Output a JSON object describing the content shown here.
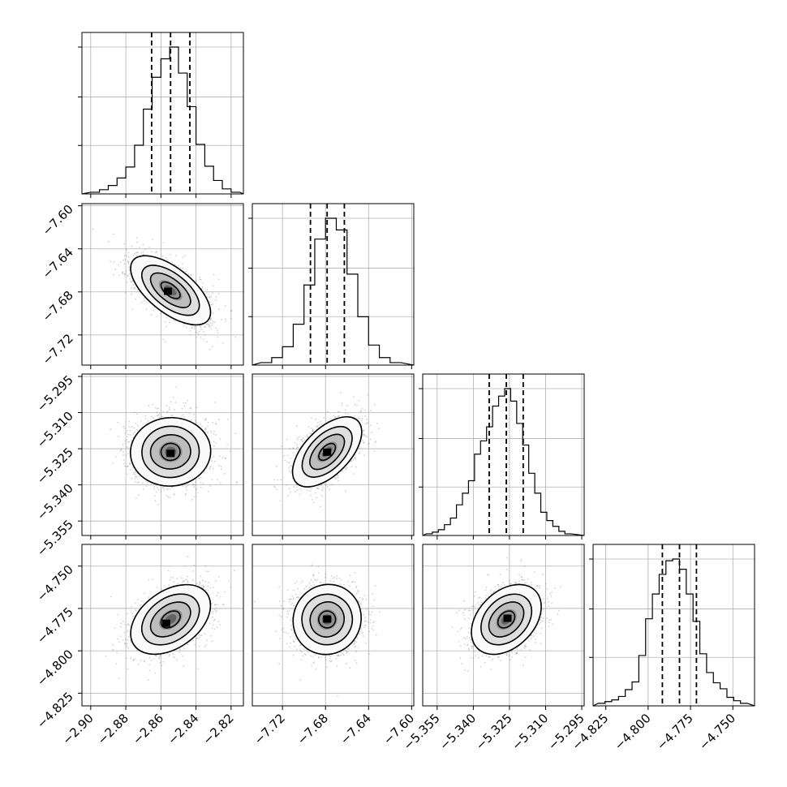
{
  "chart_data": {
    "type": "corner",
    "title": "",
    "parameters": [
      {
        "name": "",
        "range": [
          -2.905,
          -2.813
        ],
        "ticks": [
          -2.9,
          -2.88,
          -2.86,
          -2.84,
          -2.82
        ],
        "tick_labels": [
          "−2.90",
          "−2.88",
          "−2.86",
          "−2.84",
          "−2.82"
        ],
        "quantiles": [
          -2.8653,
          -2.8545,
          -2.8435
        ],
        "hist_bins": [
          -2.9,
          -2.895,
          -2.89,
          -2.885,
          -2.88,
          -2.875,
          -2.87,
          -2.865,
          -2.86,
          -2.855,
          -2.85,
          -2.845,
          -2.84,
          -2.835,
          -2.83,
          -2.825,
          -2.82,
          -2.815
        ],
        "hist_counts": [
          2,
          5,
          10,
          19,
          32,
          58,
          101,
          139,
          161,
          175,
          144,
          104,
          59,
          33,
          16,
          6,
          2
        ]
      },
      {
        "name": "",
        "range": [
          -7.748,
          -7.598
        ],
        "ticks": [
          -7.72,
          -7.68,
          -7.64,
          -7.6
        ],
        "tick_labels": [
          "−7.72",
          "−7.68",
          "−7.64",
          "−7.60"
        ],
        "quantiles": [
          -7.694,
          -7.6785,
          -7.6625
        ],
        "hist_bins": [
          -7.74,
          -7.73,
          -7.72,
          -7.71,
          -7.7,
          -7.69,
          -7.68,
          -7.67,
          -7.66,
          -7.65,
          -7.64,
          -7.63,
          -7.62,
          -7.61
        ],
        "hist_counts": [
          3,
          9,
          22,
          49,
          96,
          151,
          176,
          162,
          109,
          58,
          24,
          9,
          3
        ]
      },
      {
        "name": "",
        "range": [
          -5.361,
          -5.294
        ],
        "ticks": [
          -5.355,
          -5.34,
          -5.325,
          -5.31,
          -5.295
        ],
        "tick_labels": [
          "−5.355",
          "−5.340",
          "−5.325",
          "−5.310",
          "−5.295"
        ],
        "quantiles": [
          -5.3334,
          -5.3263,
          -5.3193
        ],
        "hist_bins": [
          -5.3595,
          -5.357,
          -5.3545,
          -5.352,
          -5.3495,
          -5.347,
          -5.3445,
          -5.342,
          -5.3395,
          -5.337,
          -5.3345,
          -5.332,
          -5.3295,
          -5.327,
          -5.3245,
          -5.322,
          -5.3195,
          -5.317,
          -5.3145,
          -5.312,
          -5.3095,
          -5.307,
          -5.3045,
          -5.302,
          -5.2995
        ],
        "hist_counts": [
          2,
          4,
          7,
          13,
          21,
          37,
          51,
          66,
          98,
          114,
          131,
          156,
          168,
          177,
          162,
          135,
          109,
          75,
          51,
          28,
          18,
          11,
          5,
          2
        ]
      },
      {
        "name": "",
        "range": [
          -4.8325,
          -4.7372
        ],
        "ticks": [
          -4.825,
          -4.8,
          -4.775,
          -4.75
        ],
        "tick_labels": [
          "−4.825",
          "−4.800",
          "−4.775",
          "−4.750"
        ],
        "quantiles": [
          -4.7916,
          -4.7815,
          -4.7715
        ],
        "hist_bins": [
          -4.8295,
          -4.8255,
          -4.8215,
          -4.8175,
          -4.8135,
          -4.8095,
          -4.8055,
          -4.8015,
          -4.7975,
          -4.7935,
          -4.7895,
          -4.7855,
          -4.7815,
          -4.7775,
          -4.7735,
          -4.7695,
          -4.7655,
          -4.7615,
          -4.7575,
          -4.7535,
          -4.7495,
          -4.7455,
          -4.7415
        ],
        "hist_counts": [
          3,
          5,
          7,
          11,
          19,
          28,
          59,
          102,
          131,
          154,
          170,
          172,
          160,
          131,
          99,
          61,
          39,
          27,
          20,
          10,
          6,
          3
        ]
      }
    ],
    "pairs": [
      {
        "x": 0,
        "y": 1,
        "center": [
          -2.8545,
          -7.6785
        ],
        "sigma": [
          0.0111,
          0.0157
        ],
        "rho": -0.62,
        "core_offset": [
          -0.0015,
          -0.0013
        ],
        "contour_fill": "#fafafa"
      },
      {
        "x": 0,
        "y": 2,
        "center": [
          -2.8545,
          -5.3263
        ],
        "sigma": [
          0.0111,
          0.0071
        ],
        "rho": 0.02,
        "core_offset": [
          0.0,
          -0.0008
        ],
        "contour_fill": "#fafafa"
      },
      {
        "x": 1,
        "y": 2,
        "center": [
          -7.6785,
          -5.3263
        ],
        "sigma": [
          0.0157,
          0.0071
        ],
        "rho": 0.55,
        "core_offset": [
          0.0,
          -0.0003
        ],
        "contour_fill": "#fafafa"
      },
      {
        "x": 0,
        "y": 3,
        "center": [
          -2.8545,
          -4.7815
        ],
        "sigma": [
          0.0111,
          0.0101
        ],
        "rho": 0.38,
        "core_offset": [
          -0.0025,
          -0.0025
        ],
        "contour_fill": "#fafafa"
      },
      {
        "x": 1,
        "y": 3,
        "center": [
          -7.6785,
          -4.7815
        ],
        "sigma": [
          0.0157,
          0.0101
        ],
        "rho": 0.02,
        "core_offset": [
          0.0,
          0.0
        ],
        "contour_fill": "#fafafa"
      },
      {
        "x": 2,
        "y": 3,
        "center": [
          -5.3263,
          -4.7815
        ],
        "sigma": [
          0.0071,
          0.0101
        ],
        "rho": 0.34,
        "core_offset": [
          0.0005,
          0.0005
        ],
        "contour_fill": "#fafafa"
      }
    ],
    "contour_levels_sigma": [
      0.5,
      1.0,
      1.5,
      2.0
    ],
    "grid": true,
    "colors": {
      "points": "#7f7f7f",
      "lines": "#000000",
      "grid": "#b0b0b0"
    }
  }
}
